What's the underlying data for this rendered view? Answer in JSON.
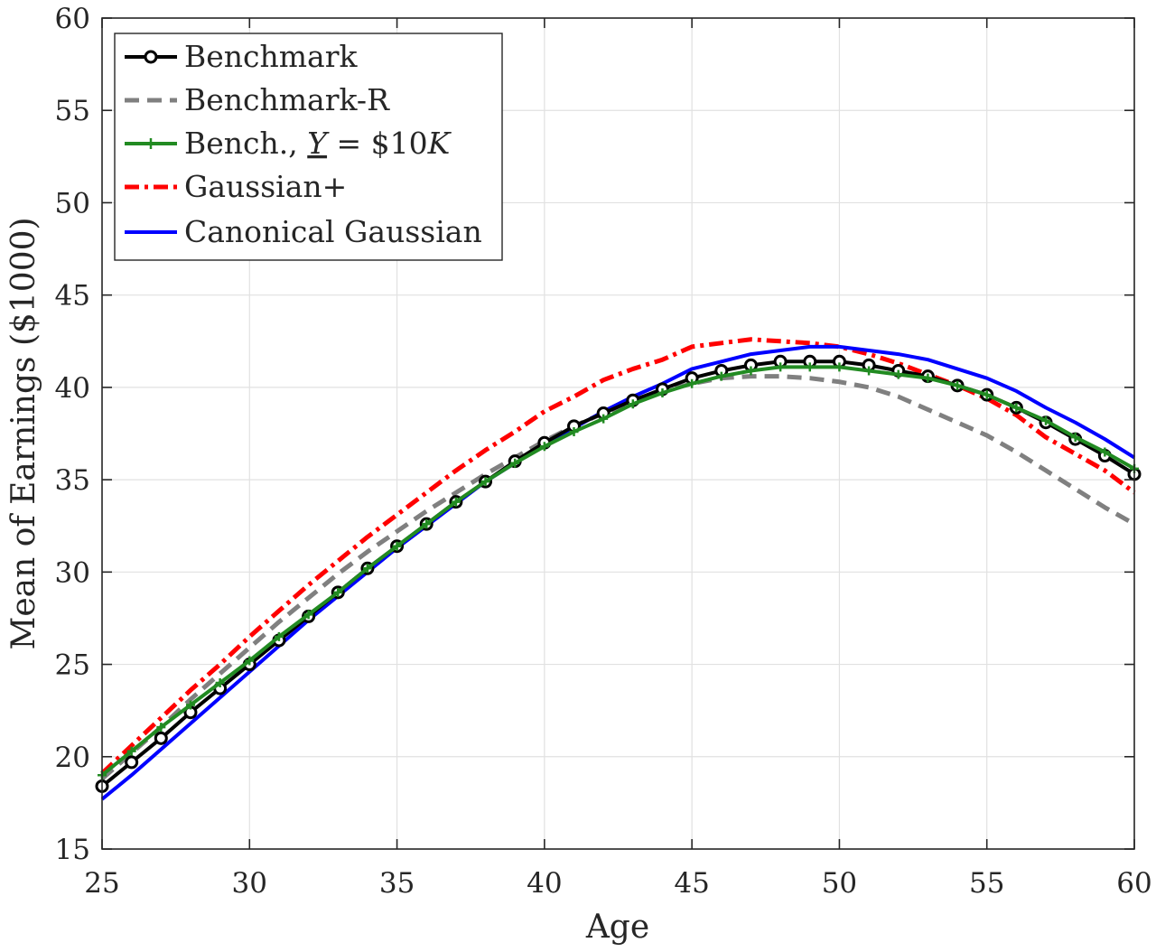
{
  "chart_data": {
    "type": "line",
    "title": "",
    "xlabel": "Age",
    "ylabel": "Mean of Earnings ($1000)",
    "xlim": [
      25,
      60
    ],
    "ylim": [
      15,
      60
    ],
    "xticks": [
      "25",
      "30",
      "35",
      "40",
      "45",
      "50",
      "55",
      "60"
    ],
    "yticks": [
      "15",
      "20",
      "25",
      "30",
      "35",
      "40",
      "45",
      "50",
      "55",
      "60"
    ],
    "grid": true,
    "legend_position": "top-left",
    "x": [
      25,
      26,
      27,
      28,
      29,
      30,
      31,
      32,
      33,
      34,
      35,
      36,
      37,
      38,
      39,
      40,
      41,
      42,
      43,
      44,
      45,
      46,
      47,
      48,
      49,
      50,
      51,
      52,
      53,
      54,
      55,
      56,
      57,
      58,
      59,
      60
    ],
    "series": [
      {
        "name": "Benchmark",
        "color": "#000000",
        "style": "solid-circle",
        "values": [
          18.4,
          19.7,
          21.0,
          22.4,
          23.7,
          25.0,
          26.3,
          27.6,
          28.9,
          30.2,
          31.4,
          32.6,
          33.8,
          34.9,
          36.0,
          37.0,
          37.9,
          38.6,
          39.3,
          39.9,
          40.5,
          40.9,
          41.2,
          41.4,
          41.4,
          41.4,
          41.2,
          40.9,
          40.6,
          40.1,
          39.6,
          38.9,
          38.1,
          37.2,
          36.3,
          35.3
        ]
      },
      {
        "name": "Benchmark-R",
        "color": "#808080",
        "style": "dashed",
        "values": [
          18.8,
          20.2,
          21.6,
          23.1,
          24.5,
          25.9,
          27.3,
          28.6,
          29.9,
          31.1,
          32.2,
          33.3,
          34.3,
          35.3,
          36.2,
          37.1,
          37.9,
          38.6,
          39.2,
          39.8,
          40.2,
          40.5,
          40.6,
          40.6,
          40.5,
          40.3,
          40.0,
          39.5,
          38.8,
          38.1,
          37.4,
          36.5,
          35.5,
          34.5,
          33.5,
          32.6
        ]
      },
      {
        "name": "Bench., $\\underline{Y}$ = $10K",
        "label_prefix": "Bench., ",
        "label_var": "Y",
        "label_suffix": " = $10",
        "label_unit": "K",
        "color": "#228B22",
        "style": "solid-plus",
        "values": [
          19.0,
          20.3,
          21.6,
          22.8,
          24.0,
          25.2,
          26.5,
          27.7,
          28.9,
          30.2,
          31.4,
          32.6,
          33.8,
          34.9,
          35.9,
          36.8,
          37.6,
          38.3,
          39.1,
          39.7,
          40.2,
          40.6,
          40.9,
          41.1,
          41.1,
          41.1,
          40.9,
          40.7,
          40.5,
          40.1,
          39.6,
          38.9,
          38.2,
          37.3,
          36.5,
          35.6
        ]
      },
      {
        "name": "Gaussian+",
        "color": "#ff0000",
        "style": "dashdot",
        "values": [
          19.1,
          20.6,
          22.1,
          23.6,
          25.0,
          26.5,
          27.9,
          29.3,
          30.6,
          31.9,
          33.1,
          34.3,
          35.5,
          36.6,
          37.6,
          38.7,
          39.5,
          40.4,
          41.0,
          41.5,
          42.2,
          42.4,
          42.6,
          42.5,
          42.4,
          42.2,
          41.8,
          41.3,
          40.7,
          40.1,
          39.4,
          38.5,
          37.3,
          36.4,
          35.5,
          34.3
        ]
      },
      {
        "name": "Canonical Gaussian",
        "color": "#0000ff",
        "style": "solid",
        "values": [
          17.7,
          19.0,
          20.4,
          21.8,
          23.2,
          24.6,
          26.0,
          27.4,
          28.7,
          30.0,
          31.3,
          32.5,
          33.7,
          34.9,
          35.9,
          36.9,
          37.8,
          38.7,
          39.5,
          40.2,
          41.0,
          41.4,
          41.8,
          42.0,
          42.2,
          42.2,
          42.0,
          41.8,
          41.5,
          41.0,
          40.5,
          39.8,
          38.9,
          38.1,
          37.2,
          36.2
        ]
      }
    ]
  }
}
